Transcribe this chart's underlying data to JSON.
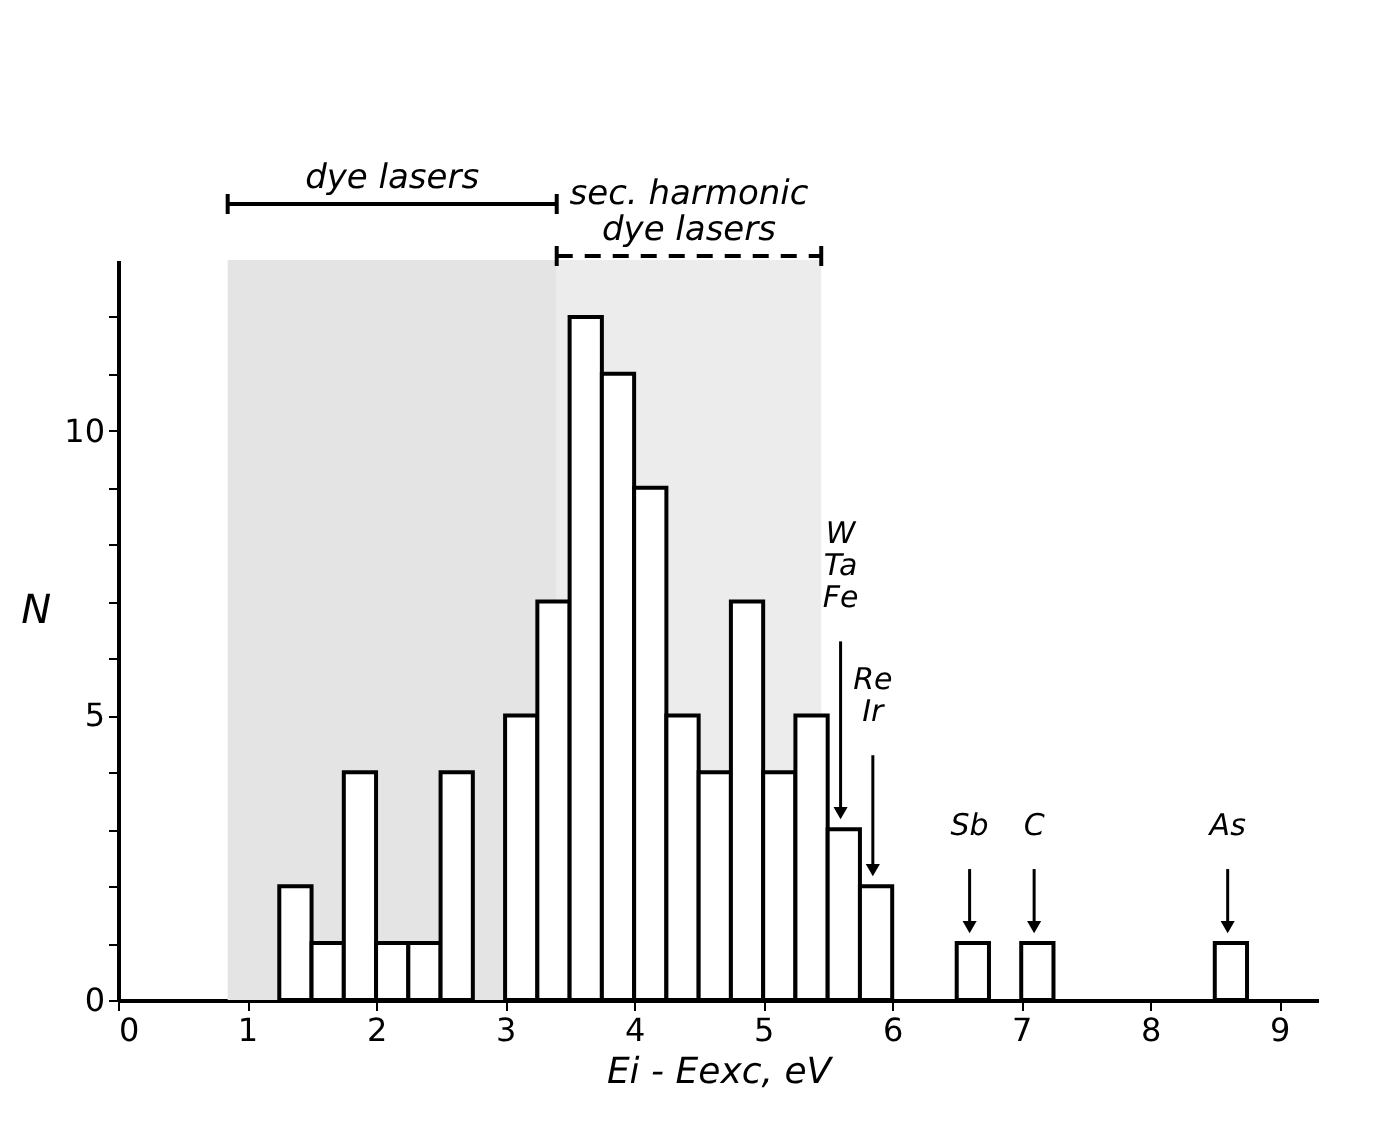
{
  "chart_data": {
    "type": "histogram",
    "xlabel": "Ei - Eexc, eV",
    "ylabel": "N",
    "bins": [
      1.25,
      1.5,
      1.75,
      2.0,
      2.25,
      2.5,
      2.75,
      3.0,
      3.25,
      3.5,
      3.75,
      4.0,
      4.25,
      4.5,
      4.75,
      5.0,
      5.25,
      5.5,
      5.75,
      6.0,
      6.25,
      6.5,
      6.75,
      7.0,
      7.25,
      7.5,
      7.75,
      8.0,
      8.25,
      8.5,
      8.75
    ],
    "values": [
      2,
      1,
      4,
      1,
      1,
      4,
      0,
      5,
      7,
      12,
      11,
      9,
      5,
      4,
      7,
      4,
      5,
      3,
      2,
      0,
      0,
      1,
      0,
      1,
      0,
      0,
      0,
      0,
      0,
      1
    ],
    "color": "#ffffff",
    "xlim": [
      0,
      9.3
    ],
    "xticks": [
      0,
      1,
      2,
      3,
      4,
      5,
      6,
      7,
      8,
      9
    ],
    "ylim": [
      0,
      13
    ],
    "yticks": [
      0,
      {
        "value": 1,
        "label": null
      },
      {
        "value": 2,
        "label": null
      },
      {
        "value": 3,
        "label": null
      },
      {
        "value": 4,
        "label": null
      },
      5,
      {
        "value": 6,
        "label": null
      },
      {
        "value": 7,
        "label": null
      },
      {
        "value": 8,
        "label": null
      },
      {
        "value": 9,
        "label": null
      },
      10,
      {
        "value": 11,
        "label": null
      },
      {
        "value": 12,
        "label": null
      }
    ],
    "grid": false,
    "bands": [
      {
        "axis": "x",
        "from": 0.85,
        "to": 3.4,
        "label": "dye lasers",
        "color": "#e4e4e4"
      },
      {
        "axis": "x",
        "from": 3.4,
        "to": 5.45,
        "label": "sec. harmonic\ndye lasers",
        "color": "#ececec"
      }
    ],
    "annotations": [
      {
        "text": "W\nTa\nFe",
        "x": 5.6,
        "y": 3
      },
      {
        "text": "Re\nIr",
        "x": 5.85,
        "y": 2
      },
      {
        "text": "Sb",
        "x": 6.6,
        "y": 1
      },
      {
        "text": "C",
        "x": 7.1,
        "y": 1
      },
      {
        "text": "As",
        "x": 8.6,
        "y": 1
      }
    ]
  }
}
